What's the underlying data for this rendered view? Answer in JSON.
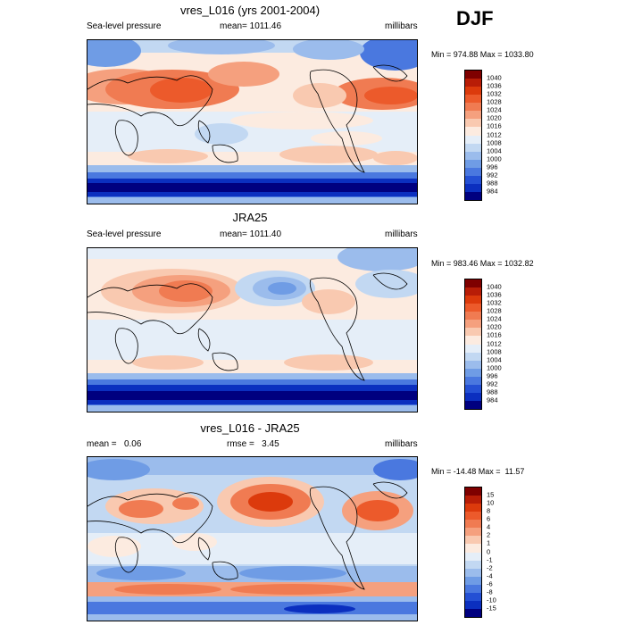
{
  "season": "DJF",
  "panels": [
    {
      "title": "vres_L016 (yrs 2001-2004)",
      "left_label": "Sea-level pressure",
      "center_label": "mean= 1011.46",
      "right_label": "millibars",
      "minmax": "Min = 974.88 Max = 1033.80",
      "colorbar": {
        "labels": [
          "1040",
          "1036",
          "1032",
          "1028",
          "1024",
          "1020",
          "1016",
          "1012",
          "1008",
          "1004",
          "1000",
          "996",
          "992",
          "988",
          "984"
        ],
        "colors": [
          "#7f0000",
          "#b81d07",
          "#dc3a0c",
          "#ec5a2b",
          "#f07b52",
          "#f5a07e",
          "#f9c9b0",
          "#fcebe0",
          "#e5eef8",
          "#c2d8f2",
          "#9bbcec",
          "#6f9ce5",
          "#4a78df",
          "#2450d4",
          "#0b2fbf",
          "#00007f"
        ]
      }
    },
    {
      "title": "JRA25",
      "left_label": "Sea-level pressure",
      "center_label": "mean= 1011.40",
      "right_label": "millibars",
      "minmax": "Min = 983.46 Max = 1032.82",
      "colorbar": {
        "labels": [
          "1040",
          "1036",
          "1032",
          "1028",
          "1024",
          "1020",
          "1016",
          "1012",
          "1008",
          "1004",
          "1000",
          "996",
          "992",
          "988",
          "984"
        ],
        "colors": [
          "#7f0000",
          "#b81d07",
          "#dc3a0c",
          "#ec5a2b",
          "#f07b52",
          "#f5a07e",
          "#f9c9b0",
          "#fcebe0",
          "#e5eef8",
          "#c2d8f2",
          "#9bbcec",
          "#6f9ce5",
          "#4a78df",
          "#2450d4",
          "#0b2fbf",
          "#00007f"
        ]
      }
    },
    {
      "title": "vres_L016 - JRA25",
      "left_label": "mean =   0.06",
      "center_label": "rmse =   3.45",
      "right_label": "millibars",
      "minmax": "Min = -14.48 Max =  11.57",
      "colorbar": {
        "labels": [
          "15",
          "10",
          "8",
          "6",
          "4",
          "2",
          "1",
          "0",
          "-1",
          "-2",
          "-4",
          "-6",
          "-8",
          "-10",
          "-15"
        ],
        "colors": [
          "#7f0000",
          "#b81d07",
          "#dc3a0c",
          "#ec5a2b",
          "#f07b52",
          "#f5a07e",
          "#f9c9b0",
          "#fcebe0",
          "#e5eef8",
          "#c2d8f2",
          "#9bbcec",
          "#6f9ce5",
          "#4a78df",
          "#2450d4",
          "#0b2fbf",
          "#00007f"
        ]
      }
    }
  ]
}
